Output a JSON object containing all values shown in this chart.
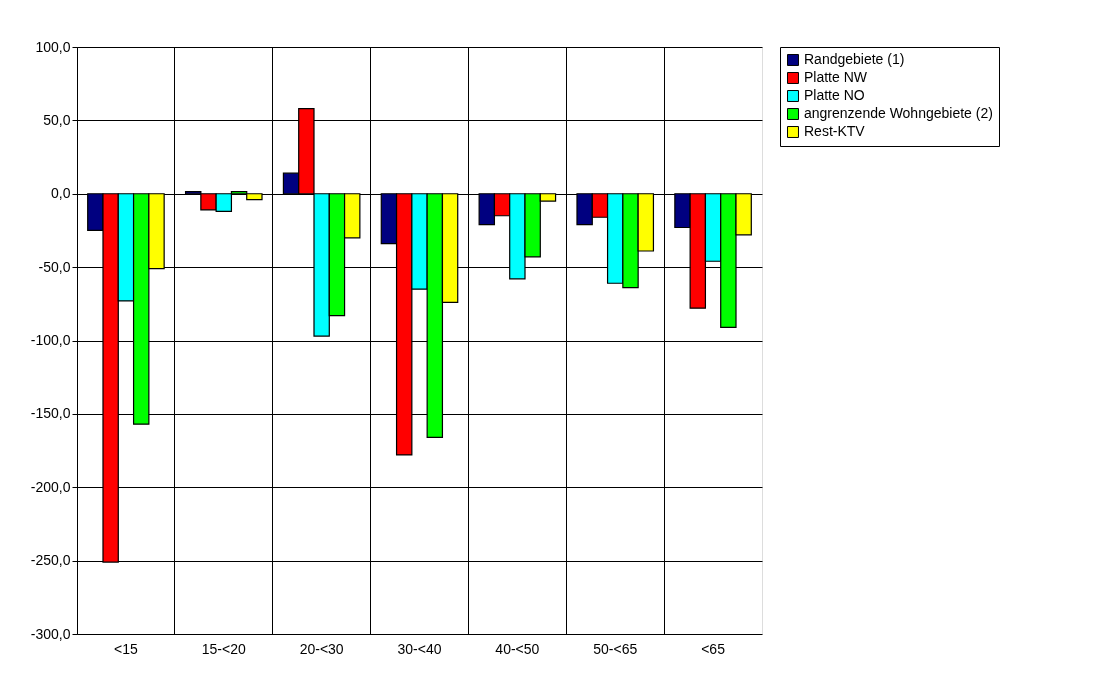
{
  "chart_data": {
    "type": "bar",
    "categories": [
      "<15",
      "15-<20",
      "20-<30",
      "30-<40",
      "40-<50",
      "50-<65",
      "<65"
    ],
    "series": [
      {
        "name": "Randgebiete (1)",
        "color": "#000080",
        "values": [
          -25,
          1.5,
          14,
          -34,
          -21,
          -21,
          -23
        ]
      },
      {
        "name": "Platte NW",
        "color": "#ff0000",
        "values": [
          -251,
          -11,
          58,
          -178,
          -15,
          -16,
          -78
        ]
      },
      {
        "name": "Platte NO",
        "color": "#00ffff",
        "values": [
          -73,
          -12,
          -97,
          -65,
          -58,
          -61,
          -46
        ]
      },
      {
        "name": "angrenzende Wohngebiete (2)",
        "color": "#00ff00",
        "values": [
          -157,
          1.5,
          -83,
          -166,
          -43,
          -64,
          -91
        ]
      },
      {
        "name": "Rest-KTV",
        "color": "#ffff00",
        "values": [
          -51,
          -4,
          -30,
          -74,
          -5,
          -39,
          -28
        ]
      }
    ],
    "ylim": [
      -300,
      100
    ],
    "yticks": [
      {
        "value": -300,
        "label": "-300,0"
      },
      {
        "value": -250,
        "label": "-250,0"
      },
      {
        "value": -200,
        "label": "-200,0"
      },
      {
        "value": -150,
        "label": "-150,0"
      },
      {
        "value": -100,
        "label": "-100,0"
      },
      {
        "value": -50,
        "label": "-50,0"
      },
      {
        "value": 0,
        "label": "0,0"
      },
      {
        "value": 50,
        "label": "50,0"
      },
      {
        "value": 100,
        "label": "100,0"
      }
    ],
    "grid": true,
    "legend": "right"
  }
}
